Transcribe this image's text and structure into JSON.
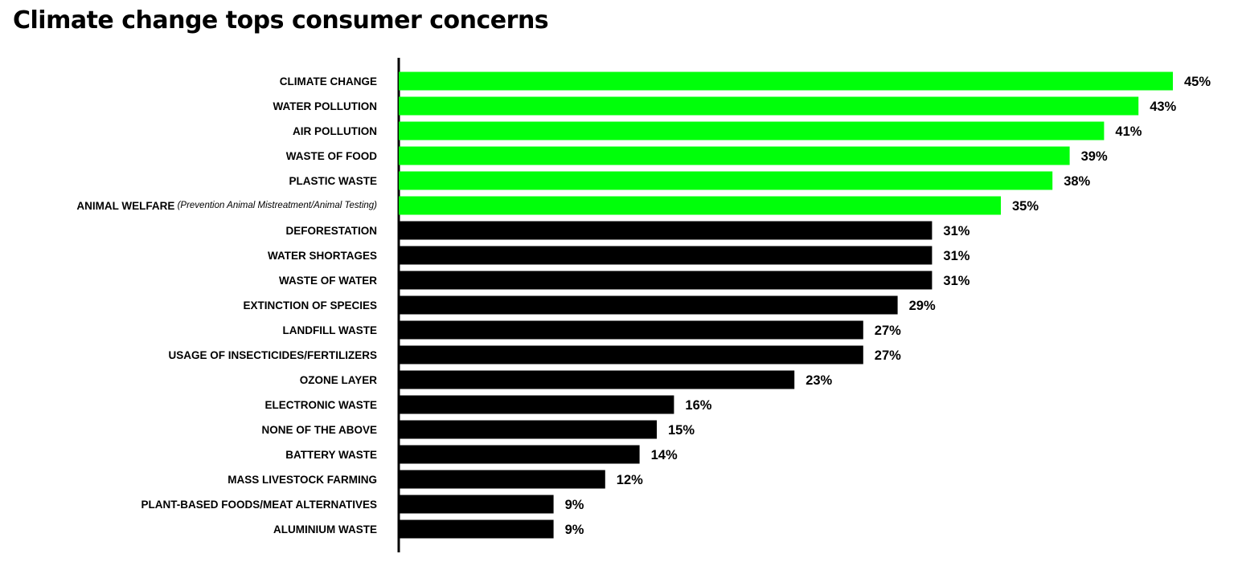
{
  "title": "Climate change tops consumer concerns",
  "colors": {
    "highlight": "#00ff0a",
    "default": "#000000"
  },
  "chart_data": {
    "type": "bar",
    "orientation": "horizontal",
    "title": "Climate change tops consumer concerns",
    "xlim": [
      0,
      45
    ],
    "grid": false,
    "value_suffix": "%",
    "categories": [
      {
        "label": "CLIMATE CHANGE",
        "value": 45,
        "display": "45%",
        "highlight": true
      },
      {
        "label": "WATER POLLUTION",
        "value": 43,
        "display": "43%",
        "highlight": true
      },
      {
        "label": "AIR POLLUTION",
        "value": 41,
        "display": "41%",
        "highlight": true
      },
      {
        "label": "WASTE OF FOOD",
        "value": 39,
        "display": "39%",
        "highlight": true
      },
      {
        "label": "PLASTIC WASTE",
        "value": 38,
        "display": "38%",
        "highlight": true
      },
      {
        "label": "ANIMAL WELFARE",
        "note": "(Prevention Animal Mistreatment/Animal Testing)",
        "value": 35,
        "display": "35%",
        "highlight": true
      },
      {
        "label": "DEFORESTATION",
        "value": 31,
        "display": "31%",
        "highlight": false
      },
      {
        "label": "WATER SHORTAGES",
        "value": 31,
        "display": "31%",
        "highlight": false
      },
      {
        "label": "WASTE OF WATER",
        "value": 31,
        "display": "31%",
        "highlight": false
      },
      {
        "label": "EXTINCTION OF SPECIES",
        "value": 29,
        "display": "29%",
        "highlight": false
      },
      {
        "label": "LANDFILL WASTE",
        "value": 27,
        "display": "27%",
        "highlight": false
      },
      {
        "label": "USAGE OF INSECTICIDES/FERTILIZERS",
        "value": 27,
        "display": "27%",
        "highlight": false
      },
      {
        "label": "OZONE LAYER",
        "value": 23,
        "display": "23%",
        "highlight": false
      },
      {
        "label": "ELECTRONIC WASTE",
        "value": 16,
        "display": "16%",
        "highlight": false
      },
      {
        "label": "NONE OF THE ABOVE",
        "value": 15,
        "display": "15%",
        "highlight": false
      },
      {
        "label": "BATTERY WASTE",
        "value": 14,
        "display": "14%",
        "highlight": false
      },
      {
        "label": "MASS LIVESTOCK FARMING",
        "value": 12,
        "display": "12%",
        "highlight": false
      },
      {
        "label": "PLANT-BASED FOODS/MEAT ALTERNATIVES",
        "value": 9,
        "display": "9%",
        "highlight": false
      },
      {
        "label": "ALUMINIUM WASTE",
        "value": 9,
        "display": "9%",
        "highlight": false
      }
    ]
  }
}
